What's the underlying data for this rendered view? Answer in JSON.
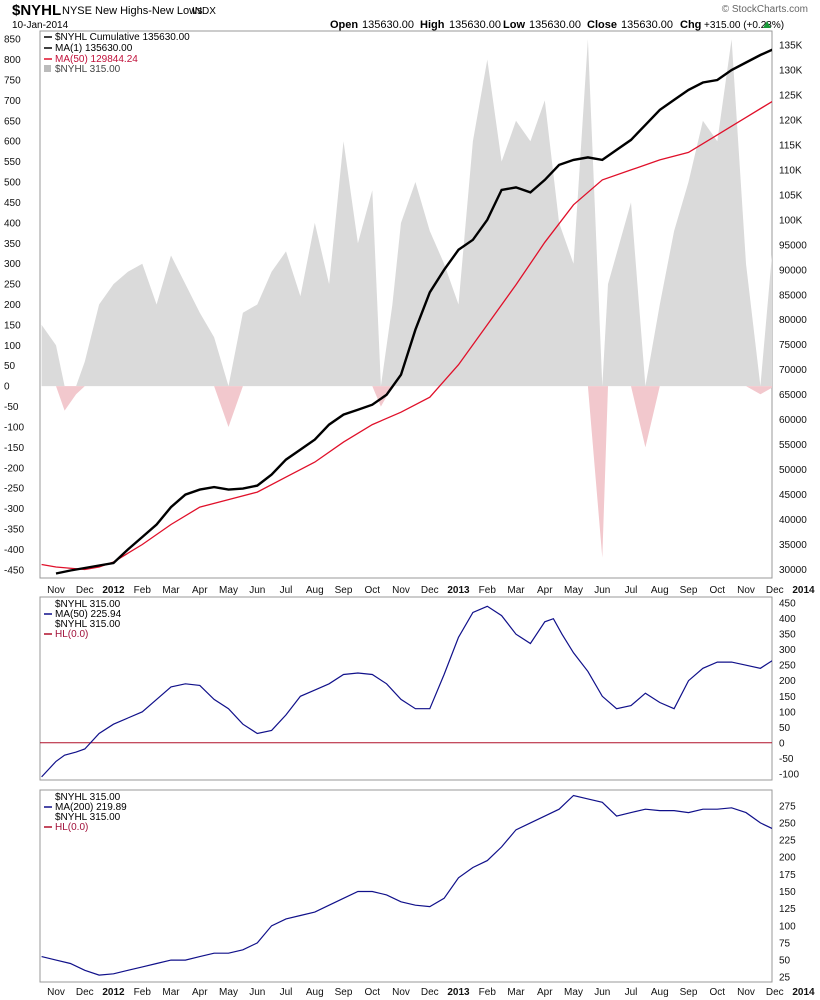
{
  "header": {
    "symbol": "$NYHL",
    "name": "NYSE New Highs-New Lows",
    "exchange": "INDX",
    "date": "10-Jan-2014",
    "open_label": "Open",
    "open_value": "135630.00",
    "high_label": "High",
    "high_value": "135630.00",
    "low_label": "Low",
    "low_value": "135630.00",
    "close_label": "Close",
    "close_value": "135630.00",
    "chg_label": "Chg",
    "chg_value": "+315.00 (+0.23%)",
    "watermark": "© StockCharts.com"
  },
  "x_axis_labels": [
    "Nov",
    "Dec",
    "2012",
    "Feb",
    "Mar",
    "Apr",
    "May",
    "Jun",
    "Jul",
    "Aug",
    "Sep",
    "Oct",
    "Nov",
    "Dec",
    "2013",
    "Feb",
    "Mar",
    "Apr",
    "May",
    "Jun",
    "Jul",
    "Aug",
    "Sep",
    "Oct",
    "Nov",
    "Dec",
    "2014"
  ],
  "colors": {
    "cumulative": "#000000",
    "ma50_main": "#e0102a",
    "hl_bar": "#dadada",
    "hl_neg": "#f2c8cd",
    "ma_blue": "#10108a",
    "zero_line": "#b0102a",
    "legend_red": "#a0103a"
  },
  "chart_data": [
    {
      "type": "line",
      "panel": "main",
      "legend": [
        {
          "text": "$NYHL Cumulative 135630.00",
          "style": "line-black"
        },
        {
          "text": "MA(1) 135630.00",
          "style": "line-black"
        },
        {
          "text": "MA(50) 129844.24",
          "style": "line-red"
        },
        {
          "text": "$NYHL 315.00",
          "style": "area-gray"
        }
      ],
      "y_left_ticks": [
        850,
        800,
        750,
        700,
        650,
        600,
        550,
        500,
        450,
        400,
        350,
        300,
        250,
        200,
        150,
        100,
        50,
        0,
        -50,
        -100,
        -150,
        -200,
        -250,
        -300,
        -350,
        -400,
        -450
      ],
      "y_right_ticks": [
        "135K",
        "130K",
        "125K",
        "120K",
        "115K",
        "110K",
        "105K",
        "100K",
        "95000",
        "90000",
        "85000",
        "80000",
        "75000",
        "70000",
        "65000",
        "60000",
        "55000",
        "50000",
        "45000",
        "40000",
        "35000",
        "30000"
      ],
      "y_left_range": [
        -470,
        870
      ],
      "y_right_range": [
        28300,
        137800
      ],
      "series": [
        {
          "name": "$NYHL Cumulative",
          "axis": "right",
          "t": [
            0,
            0.5,
            1,
            1.5,
            2,
            2.5,
            3,
            3.5,
            4,
            4.5,
            5,
            5.5,
            6,
            6.5,
            7,
            7.5,
            8,
            8.5,
            9,
            9.5,
            10,
            10.5,
            11,
            11.5,
            12,
            12.5,
            13,
            13.5,
            14,
            14.5,
            15,
            15.5,
            16,
            16.5,
            17,
            17.5,
            18,
            18.5,
            19,
            19.5,
            20,
            20.5,
            21,
            21.5,
            22,
            22.5,
            23,
            23.5,
            24,
            24.5,
            25,
            25.5,
            26,
            26.3
          ],
          "values": [
            29200,
            29800,
            30300,
            30800,
            31300,
            34000,
            36500,
            39000,
            42500,
            45000,
            46000,
            46500,
            46000,
            46200,
            46800,
            49000,
            52000,
            54000,
            56000,
            59000,
            61000,
            62000,
            63000,
            65000,
            69000,
            78000,
            85500,
            90000,
            94000,
            96000,
            100000,
            106000,
            106500,
            105500,
            108000,
            111000,
            112000,
            112500,
            112000,
            114000,
            116000,
            119000,
            122000,
            124000,
            126000,
            127500,
            128000,
            130000,
            131500,
            133000,
            134300,
            134000,
            135000,
            135630
          ]
        },
        {
          "name": "MA(50)",
          "axis": "right",
          "t": [
            -0.5,
            0,
            1,
            1.5,
            2,
            3,
            4,
            5,
            6,
            7,
            8,
            9,
            10,
            11,
            12,
            13,
            14,
            15,
            16,
            17,
            18,
            19,
            20,
            21,
            22,
            23,
            24,
            25,
            26,
            26.3
          ],
          "values": [
            31000,
            30500,
            30000,
            30500,
            31500,
            35000,
            39000,
            42500,
            44000,
            45500,
            48500,
            51500,
            55500,
            59000,
            61500,
            64500,
            71000,
            79000,
            87000,
            95500,
            103000,
            108000,
            110000,
            112000,
            113500,
            117000,
            120500,
            124000,
            128500,
            129844
          ]
        },
        {
          "name": "$NYHL",
          "axis": "left",
          "type": "area",
          "t": [
            -0.5,
            0,
            0.3,
            0.7,
            1,
            1.5,
            2,
            2.5,
            3,
            3.5,
            4,
            4.5,
            5,
            5.5,
            6,
            6.5,
            7,
            7.5,
            8,
            8.5,
            9,
            9.5,
            10,
            10.5,
            11,
            11.3,
            11.7,
            12,
            12.5,
            13,
            13.5,
            14,
            14.5,
            15,
            15.5,
            16,
            16.5,
            17,
            17.5,
            18,
            18.5,
            19,
            19.2,
            19.6,
            20,
            20.5,
            21,
            21.5,
            22,
            22.5,
            23,
            23.5,
            24,
            24.5,
            25,
            25.5,
            26,
            26.3
          ],
          "values": [
            150,
            100,
            -60,
            -20,
            60,
            200,
            250,
            280,
            300,
            200,
            320,
            250,
            180,
            120,
            -100,
            180,
            200,
            280,
            330,
            220,
            400,
            250,
            600,
            350,
            480,
            -50,
            200,
            400,
            500,
            380,
            300,
            200,
            600,
            800,
            550,
            650,
            600,
            700,
            400,
            300,
            850,
            -420,
            250,
            350,
            450,
            -150,
            200,
            380,
            500,
            650,
            600,
            850,
            300,
            -20,
            400,
            600,
            800,
            315
          ]
        }
      ]
    },
    {
      "type": "line",
      "panel": "ma50",
      "legend": [
        {
          "text": "$NYHL 315.00",
          "style": "none"
        },
        {
          "text": "MA(50) 225.94",
          "style": "line-blue"
        },
        {
          "text": "$NYHL 315.00",
          "style": "none"
        },
        {
          "text": "HL(0.0)",
          "style": "line-red"
        }
      ],
      "y_ticks": [
        450,
        400,
        350,
        300,
        250,
        200,
        150,
        100,
        50,
        0,
        -50,
        -100
      ],
      "y_range": [
        -120,
        470
      ],
      "series": [
        {
          "name": "MA(50)",
          "t": [
            -0.5,
            0,
            0.3,
            0.7,
            1,
            1.5,
            2,
            2.5,
            3,
            3.5,
            4,
            4.5,
            5,
            5.5,
            6,
            6.5,
            7,
            7.5,
            8,
            8.5,
            9,
            9.5,
            10,
            10.5,
            11,
            11.5,
            12,
            12.5,
            13,
            13.5,
            14,
            14.5,
            15,
            15.5,
            16,
            16.5,
            17,
            17.3,
            17.6,
            18,
            18.5,
            19,
            19.5,
            20,
            20.5,
            21,
            21.5,
            22,
            22.5,
            23,
            23.5,
            24,
            24.5,
            25,
            25.5,
            26,
            26.3
          ],
          "values": [
            -110,
            -60,
            -40,
            -30,
            -20,
            30,
            60,
            80,
            100,
            140,
            180,
            190,
            185,
            140,
            110,
            60,
            30,
            40,
            90,
            150,
            170,
            190,
            220,
            225,
            220,
            190,
            140,
            110,
            110,
            220,
            340,
            420,
            440,
            410,
            350,
            320,
            390,
            400,
            350,
            290,
            230,
            150,
            110,
            120,
            160,
            130,
            110,
            200,
            240,
            260,
            260,
            250,
            240,
            270,
            230,
            226,
            226
          ]
        },
        {
          "name": "HL(0.0)",
          "t": [
            -0.5,
            26.3
          ],
          "values": [
            0,
            0
          ]
        }
      ]
    },
    {
      "type": "line",
      "panel": "ma200",
      "legend": [
        {
          "text": "$NYHL 315.00",
          "style": "none"
        },
        {
          "text": "MA(200) 219.89",
          "style": "line-blue"
        },
        {
          "text": "$NYHL 315.00",
          "style": "none"
        },
        {
          "text": "HL(0.0)",
          "style": "line-red"
        }
      ],
      "y_ticks": [
        275,
        250,
        225,
        200,
        175,
        150,
        125,
        100,
        75,
        50,
        25
      ],
      "y_range": [
        18,
        298
      ],
      "series": [
        {
          "name": "MA(200)",
          "t": [
            -0.5,
            0,
            0.5,
            1,
            1.5,
            2,
            2.5,
            3,
            3.5,
            4,
            4.5,
            5,
            5.5,
            6,
            6.5,
            7,
            7.5,
            8,
            8.5,
            9,
            9.5,
            10,
            10.5,
            11,
            11.5,
            12,
            12.5,
            13,
            13.5,
            14,
            14.5,
            15,
            15.5,
            16,
            16.5,
            17,
            17.5,
            18,
            18.5,
            19,
            19.5,
            20,
            20.5,
            21,
            21.5,
            22,
            22.5,
            23,
            23.5,
            24,
            24.5,
            25,
            25.5,
            26,
            26.3
          ],
          "values": [
            55,
            50,
            45,
            35,
            28,
            30,
            35,
            40,
            45,
            50,
            50,
            55,
            60,
            60,
            65,
            75,
            100,
            110,
            115,
            120,
            130,
            140,
            150,
            150,
            145,
            135,
            130,
            128,
            140,
            170,
            185,
            195,
            215,
            240,
            250,
            260,
            270,
            290,
            285,
            280,
            260,
            265,
            270,
            268,
            268,
            265,
            270,
            270,
            272,
            265,
            250,
            240,
            232,
            222,
            220
          ]
        }
      ]
    }
  ]
}
